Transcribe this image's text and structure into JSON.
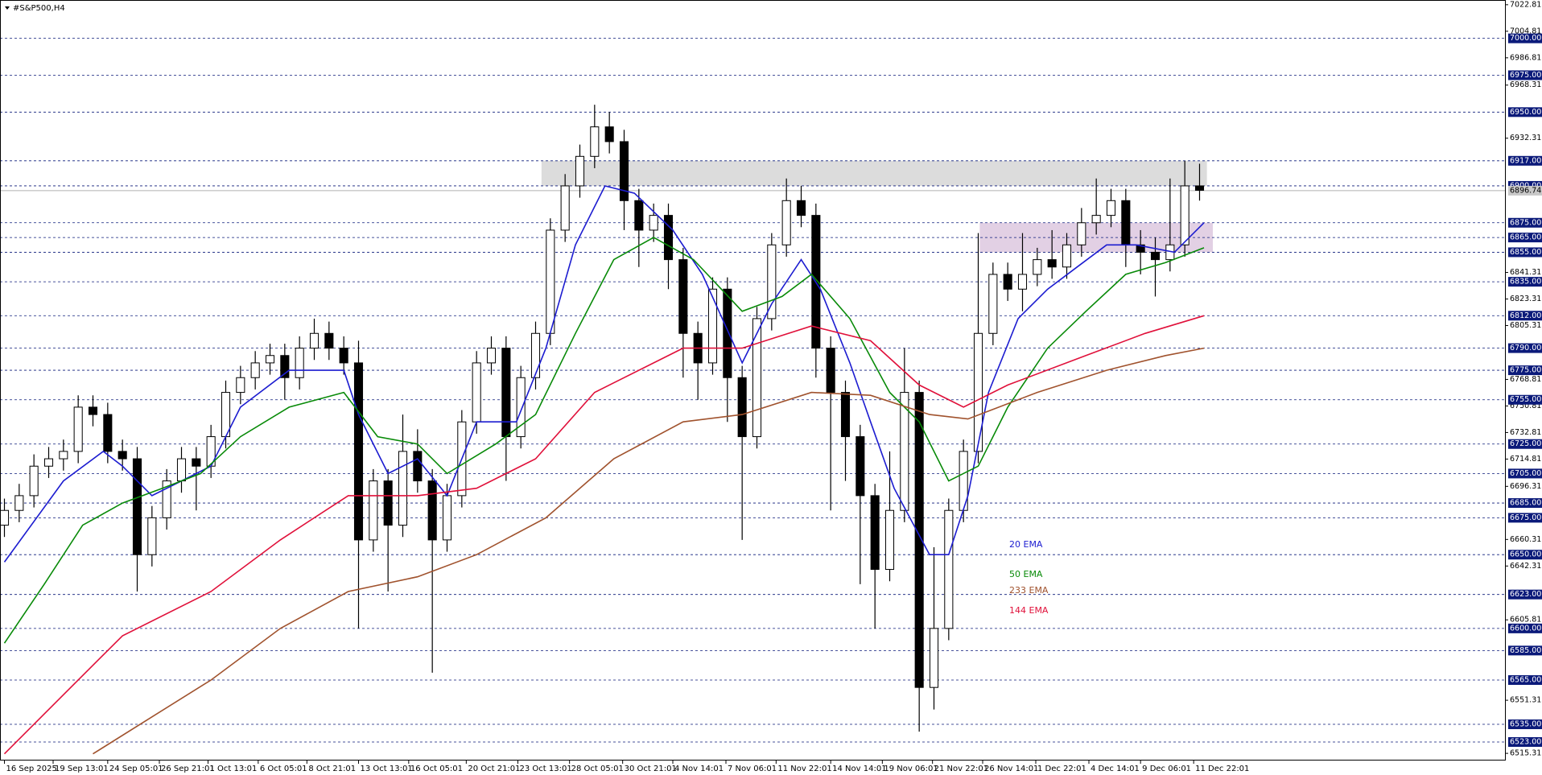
{
  "chart_data": {
    "type": "candlestick",
    "title": "#S&P500,H4",
    "xlim": [
      -0.3,
      101.7
    ],
    "ylim": [
      6511,
      7026
    ],
    "xticks": [
      {
        "value": 0,
        "label": "16 Sep 2025"
      },
      {
        "value": 3.3,
        "label": "19 Sep 13:01"
      },
      {
        "value": 7,
        "label": "24 Sep 05:01"
      },
      {
        "value": 10.5,
        "label": "26 Sep 21:01"
      },
      {
        "value": 13.8,
        "label": "1 Oct 13:01"
      },
      {
        "value": 17.2,
        "label": "6 Oct 05:01"
      },
      {
        "value": 20.5,
        "label": "8 Oct 21:01"
      },
      {
        "value": 24,
        "label": "13 Oct 13:01"
      },
      {
        "value": 27.4,
        "label": "16 Oct 05:01"
      },
      {
        "value": 31.3,
        "label": "20 Oct 21:01"
      },
      {
        "value": 34.8,
        "label": "23 Oct 13:01"
      },
      {
        "value": 38.3,
        "label": "28 Oct 05:01"
      },
      {
        "value": 41.9,
        "label": "30 Oct 21:01"
      },
      {
        "value": 45.3,
        "label": "4 Nov 14:01"
      },
      {
        "value": 48.9,
        "label": "7 Nov 06:01"
      },
      {
        "value": 52.3,
        "label": "11 Nov 22:01"
      },
      {
        "value": 56,
        "label": "14 Nov 14:01"
      },
      {
        "value": 59.5,
        "label": "19 Nov 06:01"
      },
      {
        "value": 62.9,
        "label": "21 Nov 22:01"
      },
      {
        "value": 66.3,
        "label": "26 Nov 14:01"
      },
      {
        "value": 69.9,
        "label": "1 Dec 22:01"
      },
      {
        "value": 73.5,
        "label": "4 Dec 14:01"
      },
      {
        "value": 77,
        "label": "9 Dec 06:01"
      },
      {
        "value": 80.6,
        "label": "11 Dec 22:01"
      }
    ],
    "yticks": [
      7022.81,
      7004.81,
      6986.81,
      6968.31,
      6932.31,
      6841.31,
      6823.31,
      6805.31,
      6768.81,
      6750.81,
      6732.81,
      6714.81,
      6696.31,
      6660.31,
      6642.31,
      6605.81,
      6551.31,
      6515.31
    ],
    "levels": [
      {
        "value": 7000,
        "label": "7000.00"
      },
      {
        "value": 6975,
        "label": "6975.00"
      },
      {
        "value": 6950,
        "label": "6950.00"
      },
      {
        "value": 6917,
        "label": "6917.00"
      },
      {
        "value": 6900,
        "label": "6900.00"
      },
      {
        "value": 6875,
        "label": "6875.00"
      },
      {
        "value": 6865,
        "label": "6865.00"
      },
      {
        "value": 6855,
        "label": "6855.00"
      },
      {
        "value": 6835,
        "label": "6835.00"
      },
      {
        "value": 6812,
        "label": "6812.00"
      },
      {
        "value": 6790,
        "label": "6790.00"
      },
      {
        "value": 6775,
        "label": "6775.00"
      },
      {
        "value": 6755,
        "label": "6755.00"
      },
      {
        "value": 6725,
        "label": "6725.00"
      },
      {
        "value": 6705,
        "label": "6705.00"
      },
      {
        "value": 6685,
        "label": "6685.00"
      },
      {
        "value": 6675,
        "label": "6675.00"
      },
      {
        "value": 6650,
        "label": "6650.00"
      },
      {
        "value": 6623,
        "label": "6623.00"
      },
      {
        "value": 6600,
        "label": "6600.00"
      },
      {
        "value": 6585,
        "label": "6585.00"
      },
      {
        "value": 6565,
        "label": "6565.00"
      },
      {
        "value": 6535,
        "label": "6535.00"
      },
      {
        "value": 6523,
        "label": "6523.00"
      }
    ],
    "current_price": {
      "value": 6896.74,
      "label": "6896.74"
    },
    "zones": [
      {
        "x": [
          36.4,
          81.5
        ],
        "y": [
          6900,
          6917
        ],
        "color": "#dcdcdc"
      },
      {
        "x": [
          66.1,
          81.9
        ],
        "y": [
          6855,
          6875
        ],
        "color": "#e2d0e4"
      }
    ],
    "candles": [
      [
        6670,
        6688,
        6662,
        6680
      ],
      [
        6680,
        6698,
        6672,
        6690
      ],
      [
        6690,
        6718,
        6682,
        6710
      ],
      [
        6710,
        6723,
        6702,
        6715
      ],
      [
        6715,
        6728,
        6707,
        6720
      ],
      [
        6720,
        6758,
        6712,
        6750
      ],
      [
        6750,
        6758,
        6737,
        6745
      ],
      [
        6745,
        6753,
        6712,
        6720
      ],
      [
        6720,
        6728,
        6707,
        6715
      ],
      [
        6715,
        6723,
        6625,
        6650
      ],
      [
        6650,
        6683,
        6642,
        6675
      ],
      [
        6675,
        6708,
        6667,
        6700
      ],
      [
        6700,
        6723,
        6692,
        6715
      ],
      [
        6715,
        6723,
        6680,
        6710
      ],
      [
        6710,
        6738,
        6702,
        6730
      ],
      [
        6730,
        6768,
        6722,
        6760
      ],
      [
        6760,
        6778,
        6752,
        6770
      ],
      [
        6770,
        6788,
        6762,
        6780
      ],
      [
        6780,
        6793,
        6772,
        6785
      ],
      [
        6785,
        6793,
        6755,
        6770
      ],
      [
        6770,
        6798,
        6762,
        6790
      ],
      [
        6790,
        6810,
        6782,
        6800
      ],
      [
        6800,
        6808,
        6782,
        6790
      ],
      [
        6790,
        6798,
        6772,
        6780
      ],
      [
        6780,
        6795,
        6600,
        6660
      ],
      [
        6660,
        6708,
        6652,
        6700
      ],
      [
        6700,
        6708,
        6625,
        6670
      ],
      [
        6670,
        6745,
        6662,
        6720
      ],
      [
        6720,
        6735,
        6692,
        6700
      ],
      [
        6700,
        6708,
        6570,
        6660
      ],
      [
        6660,
        6698,
        6652,
        6690
      ],
      [
        6690,
        6748,
        6682,
        6740
      ],
      [
        6740,
        6788,
        6732,
        6780
      ],
      [
        6780,
        6798,
        6772,
        6790
      ],
      [
        6790,
        6798,
        6700,
        6730
      ],
      [
        6730,
        6778,
        6722,
        6770
      ],
      [
        6770,
        6808,
        6762,
        6800
      ],
      [
        6800,
        6878,
        6792,
        6870
      ],
      [
        6870,
        6908,
        6862,
        6900
      ],
      [
        6900,
        6928,
        6892,
        6920
      ],
      [
        6920,
        6955,
        6912,
        6940
      ],
      [
        6940,
        6950,
        6922,
        6930
      ],
      [
        6930,
        6938,
        6870,
        6890
      ],
      [
        6890,
        6898,
        6845,
        6870
      ],
      [
        6870,
        6888,
        6862,
        6880
      ],
      [
        6880,
        6888,
        6830,
        6850
      ],
      [
        6850,
        6858,
        6770,
        6800
      ],
      [
        6800,
        6808,
        6755,
        6780
      ],
      [
        6780,
        6838,
        6772,
        6830
      ],
      [
        6830,
        6838,
        6740,
        6770
      ],
      [
        6770,
        6778,
        6660,
        6730
      ],
      [
        6730,
        6818,
        6722,
        6810
      ],
      [
        6810,
        6868,
        6802,
        6860
      ],
      [
        6860,
        6905,
        6852,
        6890
      ],
      [
        6890,
        6900,
        6872,
        6880
      ],
      [
        6880,
        6888,
        6770,
        6790
      ],
      [
        6790,
        6798,
        6680,
        6760
      ],
      [
        6760,
        6768,
        6700,
        6730
      ],
      [
        6730,
        6738,
        6630,
        6690
      ],
      [
        6690,
        6698,
        6600,
        6640
      ],
      [
        6640,
        6720,
        6632,
        6680
      ],
      [
        6680,
        6790,
        6672,
        6760
      ],
      [
        6760,
        6768,
        6530,
        6560
      ],
      [
        6560,
        6655,
        6545,
        6600
      ],
      [
        6600,
        6688,
        6592,
        6680
      ],
      [
        6680,
        6728,
        6672,
        6720
      ],
      [
        6720,
        6868,
        6712,
        6800
      ],
      [
        6800,
        6848,
        6792,
        6840
      ],
      [
        6840,
        6848,
        6822,
        6830
      ],
      [
        6830,
        6868,
        6815,
        6840
      ],
      [
        6840,
        6858,
        6832,
        6850
      ],
      [
        6850,
        6870,
        6837,
        6845
      ],
      [
        6845,
        6868,
        6837,
        6860
      ],
      [
        6860,
        6885,
        6852,
        6875
      ],
      [
        6875,
        6905,
        6867,
        6880
      ],
      [
        6880,
        6898,
        6872,
        6890
      ],
      [
        6890,
        6898,
        6845,
        6860
      ],
      [
        6860,
        6870,
        6840,
        6855
      ],
      [
        6855,
        6865,
        6825,
        6850
      ],
      [
        6850,
        6905,
        6842,
        6860
      ],
      [
        6860,
        6917,
        6852,
        6900
      ],
      [
        6900,
        6915,
        6890,
        6897
      ]
    ],
    "series": [
      {
        "name": "20 EMA",
        "color": "#1c1cd0",
        "x": [
          0,
          4,
          6.7,
          8,
          10,
          12,
          14,
          16,
          19.3,
          23,
          24,
          26,
          28,
          30,
          32,
          34.7,
          36.7,
          38.7,
          40.7,
          42.7,
          45.3,
          47.3,
          50,
          52,
          54,
          55.3,
          57.3,
          58.7,
          60.3,
          62.7,
          64,
          65.3,
          66.7,
          68.7,
          70.7,
          72.7,
          74.7,
          76.7,
          79.3,
          81.3
        ],
        "values": [
          6645,
          6700,
          6720,
          6710,
          6690,
          6700,
          6710,
          6750,
          6775,
          6775,
          6745,
          6705,
          6715,
          6690,
          6740,
          6740,
          6790,
          6860,
          6900,
          6895,
          6870,
          6840,
          6780,
          6820,
          6850,
          6830,
          6780,
          6740,
          6695,
          6650,
          6650,
          6690,
          6760,
          6810,
          6830,
          6845,
          6860,
          6860,
          6855,
          6875
        ]
      },
      {
        "name": "50 EMA",
        "color": "#088a08",
        "x": [
          0,
          2.7,
          5.3,
          8,
          10.7,
          13.3,
          16,
          19.3,
          23,
          25.3,
          28,
          30,
          33.3,
          36,
          38.7,
          41.3,
          44,
          46.7,
          50,
          52.7,
          54.7,
          57.3,
          60,
          62,
          64,
          66,
          68,
          70.7,
          73.3,
          76,
          78.7,
          81.3
        ],
        "values": [
          6590,
          6630,
          6670,
          6685,
          6695,
          6705,
          6730,
          6750,
          6760,
          6730,
          6725,
          6705,
          6725,
          6745,
          6800,
          6850,
          6865,
          6850,
          6815,
          6825,
          6840,
          6810,
          6760,
          6740,
          6700,
          6710,
          6750,
          6790,
          6815,
          6840,
          6848,
          6858
        ]
      },
      {
        "name": "233 EMA",
        "color": "#a0522d",
        "x": [
          6,
          10,
          14,
          18.7,
          23.3,
          28,
          32,
          36.7,
          41.3,
          46,
          50,
          54.7,
          58.7,
          62.7,
          65.3,
          70,
          74.7,
          78.7,
          81.3
        ],
        "values": [
          6515,
          6540,
          6565,
          6600,
          6625,
          6635,
          6650,
          6675,
          6715,
          6740,
          6745,
          6760,
          6758,
          6745,
          6742,
          6760,
          6775,
          6785,
          6790
        ]
      },
      {
        "name": "144 EMA",
        "color": "#e0103a",
        "x": [
          0,
          4,
          8,
          14,
          18.7,
          23.3,
          28,
          32,
          36,
          40,
          46,
          50,
          54.7,
          58.7,
          62,
          65,
          68,
          73.3,
          77.3,
          81.3
        ],
        "values": [
          6515,
          6555,
          6595,
          6625,
          6660,
          6690,
          6690,
          6695,
          6715,
          6760,
          6790,
          6790,
          6805,
          6795,
          6765,
          6750,
          6765,
          6785,
          6800,
          6812
        ]
      }
    ]
  }
}
